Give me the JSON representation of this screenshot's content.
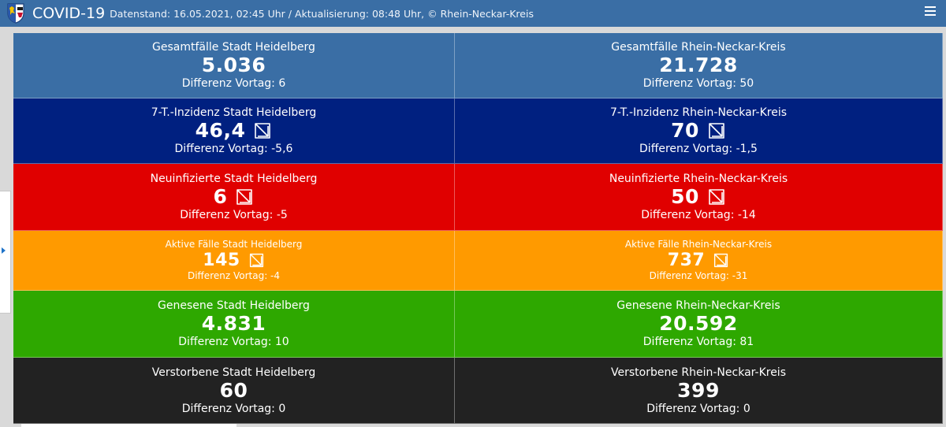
{
  "header": {
    "title": "COVID-19",
    "subtitle": "Datenstand: 16.05.2021, 02:45 Uhr / Aktualisierung: 08:48 Uhr, © Rhein-Neckar-Kreis"
  },
  "colors": {
    "header": "#3a6ea5",
    "total": "#3a6ea5",
    "incidence": "#002080",
    "new_infections": "#e00000",
    "active": "#ff9a00",
    "recovered": "#2ea800",
    "deaths": "#222222"
  },
  "rows": [
    {
      "heidelberg": {
        "label": "Gesamtfälle Stadt Heidelberg",
        "value": "5.036",
        "diff": "Differenz Vortag: 6"
      },
      "rnk": {
        "label": "Gesamtfälle Rhein-Neckar-Kreis",
        "value": "21.728",
        "diff": "Differenz Vortag: 50"
      }
    },
    {
      "heidelberg": {
        "label": "7-T.-Inzidenz Stadt Heidelberg",
        "value": "46,4",
        "diff": "Differenz Vortag: -5,6",
        "trend_icon": "trend-down-icon"
      },
      "rnk": {
        "label": "7-T.-Inzidenz Rhein-Neckar-Kreis",
        "value": "70",
        "diff": "Differenz Vortag: -1,5",
        "trend_icon": "trend-down-icon"
      }
    },
    {
      "heidelberg": {
        "label": "Neuinfizierte Stadt Heidelberg",
        "value": "6",
        "diff": "Differenz Vortag: -5",
        "trend_icon": "trend-down-icon"
      },
      "rnk": {
        "label": "Neuinfizierte Rhein-Neckar-Kreis",
        "value": "50",
        "diff": "Differenz Vortag: -14",
        "trend_icon": "trend-down-icon"
      }
    },
    {
      "heidelberg": {
        "label": "Aktive Fälle Stadt Heidelberg",
        "value": "145",
        "diff": "Differenz Vortag: -4",
        "trend_icon": "trend-down-icon"
      },
      "rnk": {
        "label": "Aktive Fälle Rhein-Neckar-Kreis",
        "value": "737",
        "diff": "Differenz Vortag: -31",
        "trend_icon": "trend-down-icon"
      }
    },
    {
      "heidelberg": {
        "label": "Genesene Stadt Heidelberg",
        "value": "4.831",
        "diff": "Differenz Vortag: 10"
      },
      "rnk": {
        "label": "Genesene Rhein-Neckar-Kreis",
        "value": "20.592",
        "diff": "Differenz Vortag: 81"
      }
    },
    {
      "heidelberg": {
        "label": "Verstorbene Stadt Heidelberg",
        "value": "60",
        "diff": "Differenz Vortag: 0"
      },
      "rnk": {
        "label": "Verstorbene Rhein-Neckar-Kreis",
        "value": "399",
        "diff": "Differenz Vortag: 0"
      }
    }
  ]
}
